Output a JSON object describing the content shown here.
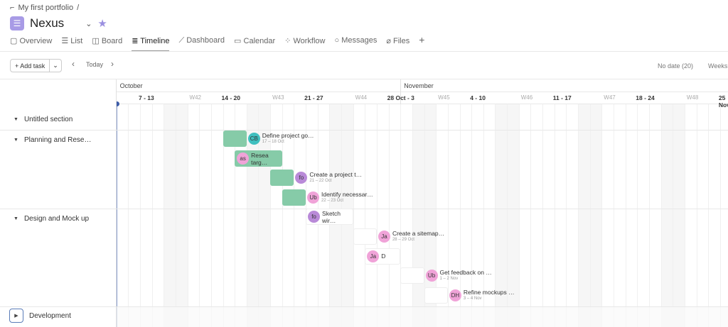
{
  "breadcrumb": {
    "portfolio": "My first portfolio",
    "sep": "/"
  },
  "project": {
    "name": "Nexus",
    "icon": "list-icon",
    "accent": "#a89be6"
  },
  "tabs": [
    {
      "label": "Overview",
      "icon": "▢"
    },
    {
      "label": "List",
      "icon": "☰"
    },
    {
      "label": "Board",
      "icon": "◫"
    },
    {
      "label": "Timeline",
      "icon": "≣",
      "active": true
    },
    {
      "label": "Dashboard",
      "icon": "⟋"
    },
    {
      "label": "Calendar",
      "icon": "▭"
    },
    {
      "label": "Workflow",
      "icon": "⁘"
    },
    {
      "label": "Messages",
      "icon": "○"
    },
    {
      "label": "Files",
      "icon": "⌀"
    }
  ],
  "toolbar": {
    "add_task": "+ Add task",
    "today": "Today",
    "no_date": "No date (20)",
    "zoom": "Weeks"
  },
  "timeline": {
    "months": [
      {
        "label": "October",
        "start": "2024-10-08"
      },
      {
        "label": "November",
        "start": "2024-11-01"
      }
    ],
    "weeks": [
      {
        "w": "",
        "range": "7 - 13",
        "start": "2024-10-07"
      },
      {
        "w": "W42",
        "range": "14 - 20",
        "start": "2024-10-14"
      },
      {
        "w": "W43",
        "range": "21 - 27",
        "start": "2024-10-21"
      },
      {
        "w": "W44",
        "range": "28 Oct - 3",
        "start": "2024-10-28"
      },
      {
        "w": "W45",
        "range": "4 - 10",
        "start": "2024-11-04"
      },
      {
        "w": "W46",
        "range": "11 - 17",
        "start": "2024-11-11"
      },
      {
        "w": "W47",
        "range": "18 - 24",
        "start": "2024-11-18"
      },
      {
        "w": "W48",
        "range": "25 Nov",
        "start": "2024-11-25"
      }
    ],
    "today": "2024-10-08",
    "done_color": "#86cba8"
  },
  "sections": [
    {
      "name": "Untitled section",
      "expanded": true
    },
    {
      "name": "Planning and Rese…",
      "expanded": true
    },
    {
      "name": "Design and Mock up",
      "expanded": true
    },
    {
      "name": "Development",
      "expanded": false
    }
  ],
  "tasks": [
    {
      "name": "Define project go…",
      "dates": "17 – 18 Oct",
      "start": "2024-10-17",
      "end": "2024-10-18",
      "avatar": "CB",
      "color": "#3fbfbf",
      "done": true,
      "inside": false
    },
    {
      "name": "Resea targ…",
      "dates": "",
      "start": "2024-10-18",
      "end": "2024-10-21",
      "avatar": "as",
      "color": "#f0a3d8",
      "done": true,
      "inside": true
    },
    {
      "name": "Create a project t…",
      "dates": "21 – 22 Oct",
      "start": "2024-10-21",
      "end": "2024-10-22",
      "avatar": "fo",
      "color": "#b98ad8",
      "done": true,
      "inside": false
    },
    {
      "name": "Identify necessar…",
      "dates": "22 – 23 Oct",
      "start": "2024-10-22",
      "end": "2024-10-23",
      "avatar": "Ub",
      "color": "#f0a3d8",
      "done": true,
      "inside": false
    },
    {
      "name": "Sketch wir…",
      "dates": "",
      "start": "2024-10-24",
      "end": "2024-10-27",
      "avatar": "fo",
      "color": "#b98ad8",
      "done": false,
      "inside": true
    },
    {
      "name": "Create a sitemap…",
      "dates": "28 – 29 Oct",
      "start": "2024-10-28",
      "end": "2024-10-29",
      "avatar": "Ja",
      "color": "#f0a3d8",
      "done": false,
      "inside": false
    },
    {
      "name": "D",
      "dates": "",
      "start": "2024-10-29",
      "end": "2024-10-31",
      "avatar": "Ja",
      "color": "#f0a3d8",
      "done": false,
      "inside": true
    },
    {
      "name": "Get feedback on …",
      "dates": "1 – 2 Nov",
      "start": "2024-11-01",
      "end": "2024-11-02",
      "avatar": "Ub",
      "color": "#f0a3d8",
      "done": false,
      "inside": false
    },
    {
      "name": "Refine mockups …",
      "dates": "3 – 4 Nov",
      "start": "2024-11-03",
      "end": "2024-11-04",
      "avatar": "DH",
      "color": "#f0a3d8",
      "done": false,
      "inside": false
    }
  ]
}
